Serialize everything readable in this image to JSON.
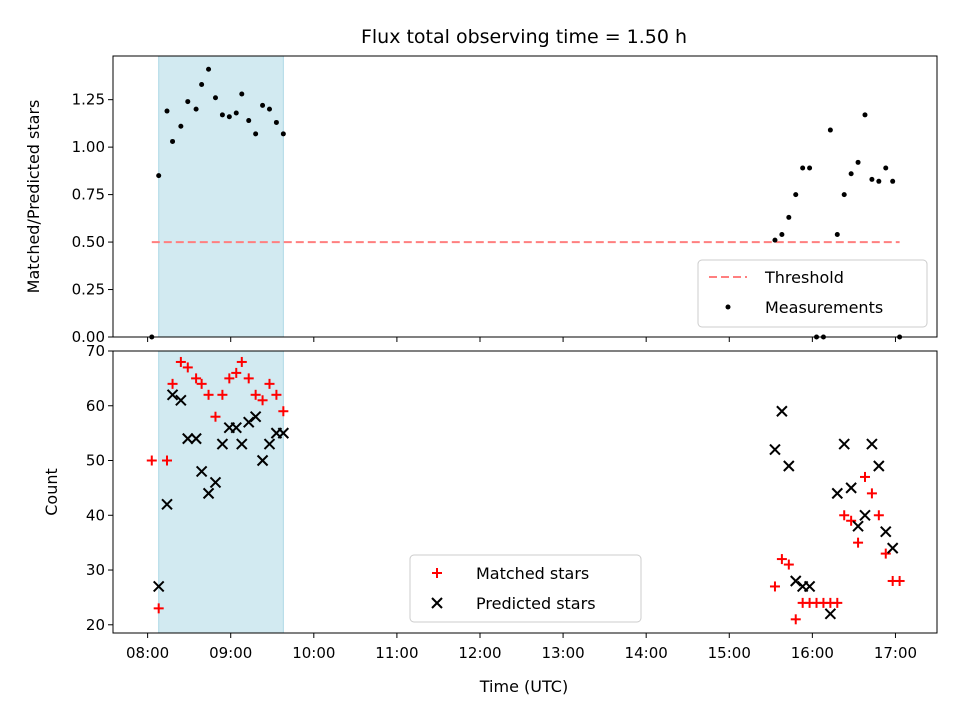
{
  "chart_data": [
    {
      "type": "scatter",
      "title": "Flux total observing time = 1.50 h",
      "xlabel": "",
      "ylabel": "Matched/Predicted stars",
      "xlim": [
        "07:35",
        "17:30"
      ],
      "ylim": [
        0,
        1.48
      ],
      "yticks": [
        "0.00",
        "0.25",
        "0.50",
        "0.75",
        "1.00",
        "1.25"
      ],
      "grid": false,
      "shaded_span": [
        "08:08",
        "09:38"
      ],
      "threshold": {
        "name": "Threshold",
        "value": 0.5,
        "x_range": [
          "08:03",
          "17:03"
        ],
        "color": "#ff7f7f"
      },
      "series": [
        {
          "name": "Measurements",
          "color": "#000000",
          "marker": "dot",
          "points": [
            [
              "08:03",
              0.0
            ],
            [
              "08:08",
              0.85
            ],
            [
              "08:14",
              1.19
            ],
            [
              "08:18",
              1.03
            ],
            [
              "08:24",
              1.11
            ],
            [
              "08:29",
              1.24
            ],
            [
              "08:35",
              1.2
            ],
            [
              "08:39",
              1.33
            ],
            [
              "08:44",
              1.41
            ],
            [
              "08:49",
              1.26
            ],
            [
              "08:54",
              1.17
            ],
            [
              "08:59",
              1.16
            ],
            [
              "09:04",
              1.18
            ],
            [
              "09:08",
              1.28
            ],
            [
              "09:13",
              1.14
            ],
            [
              "09:18",
              1.07
            ],
            [
              "09:23",
              1.22
            ],
            [
              "09:28",
              1.2
            ],
            [
              "09:33",
              1.13
            ],
            [
              "09:38",
              1.07
            ],
            [
              "15:33",
              0.51
            ],
            [
              "15:38",
              0.54
            ],
            [
              "15:43",
              0.63
            ],
            [
              "15:48",
              0.75
            ],
            [
              "15:53",
              0.89
            ],
            [
              "15:58",
              0.89
            ],
            [
              "16:03",
              0.0
            ],
            [
              "16:08",
              0.0
            ],
            [
              "16:13",
              1.09
            ],
            [
              "16:18",
              0.54
            ],
            [
              "16:23",
              0.75
            ],
            [
              "16:28",
              0.86
            ],
            [
              "16:33",
              0.92
            ],
            [
              "16:38",
              1.17
            ],
            [
              "16:43",
              0.83
            ],
            [
              "16:48",
              0.82
            ],
            [
              "16:53",
              0.89
            ],
            [
              "16:58",
              0.82
            ],
            [
              "17:03",
              0.0
            ]
          ]
        }
      ]
    },
    {
      "type": "scatter",
      "title": "",
      "xlabel": "Time (UTC)",
      "ylabel": "Count",
      "xlim": [
        "07:35",
        "17:30"
      ],
      "ylim": [
        18.5,
        70
      ],
      "xticks": [
        "08:00",
        "09:00",
        "10:00",
        "11:00",
        "12:00",
        "13:00",
        "14:00",
        "15:00",
        "16:00",
        "17:00"
      ],
      "yticks": [
        "20",
        "30",
        "40",
        "50",
        "60",
        "70"
      ],
      "grid": false,
      "shaded_span": [
        "08:08",
        "09:38"
      ],
      "series": [
        {
          "name": "Matched stars",
          "color": "#ff0000",
          "marker": "plus",
          "points": [
            [
              "08:03",
              50
            ],
            [
              "08:08",
              23
            ],
            [
              "08:14",
              50
            ],
            [
              "08:18",
              64
            ],
            [
              "08:24",
              68
            ],
            [
              "08:29",
              67
            ],
            [
              "08:35",
              65
            ],
            [
              "08:39",
              64
            ],
            [
              "08:44",
              62
            ],
            [
              "08:49",
              58
            ],
            [
              "08:54",
              62
            ],
            [
              "08:59",
              65
            ],
            [
              "09:04",
              66
            ],
            [
              "09:08",
              68
            ],
            [
              "09:13",
              65
            ],
            [
              "09:18",
              62
            ],
            [
              "09:23",
              61
            ],
            [
              "09:28",
              64
            ],
            [
              "09:33",
              62
            ],
            [
              "09:38",
              59
            ],
            [
              "15:33",
              27
            ],
            [
              "15:38",
              32
            ],
            [
              "15:43",
              31
            ],
            [
              "15:48",
              21
            ],
            [
              "15:53",
              24
            ],
            [
              "15:58",
              24
            ],
            [
              "16:03",
              24
            ],
            [
              "16:08",
              24
            ],
            [
              "16:13",
              24
            ],
            [
              "16:18",
              24
            ],
            [
              "16:23",
              40
            ],
            [
              "16:28",
              39
            ],
            [
              "16:33",
              35
            ],
            [
              "16:38",
              47
            ],
            [
              "16:43",
              44
            ],
            [
              "16:48",
              40
            ],
            [
              "16:53",
              33
            ],
            [
              "16:58",
              28
            ],
            [
              "17:03",
              28
            ]
          ]
        },
        {
          "name": "Predicted stars",
          "color": "#000000",
          "marker": "x",
          "points": [
            [
              "08:08",
              27
            ],
            [
              "08:14",
              42
            ],
            [
              "08:18",
              62
            ],
            [
              "08:24",
              61
            ],
            [
              "08:29",
              54
            ],
            [
              "08:35",
              54
            ],
            [
              "08:39",
              48
            ],
            [
              "08:44",
              44
            ],
            [
              "08:49",
              46
            ],
            [
              "08:54",
              53
            ],
            [
              "08:59",
              56
            ],
            [
              "09:04",
              56
            ],
            [
              "09:08",
              53
            ],
            [
              "09:13",
              57
            ],
            [
              "09:18",
              58
            ],
            [
              "09:23",
              50
            ],
            [
              "09:28",
              53
            ],
            [
              "09:33",
              55
            ],
            [
              "09:38",
              55
            ],
            [
              "15:33",
              52
            ],
            [
              "15:38",
              59
            ],
            [
              "15:43",
              49
            ],
            [
              "15:48",
              28
            ],
            [
              "15:53",
              27
            ],
            [
              "15:58",
              27
            ],
            [
              "16:13",
              22
            ],
            [
              "16:18",
              44
            ],
            [
              "16:23",
              53
            ],
            [
              "16:28",
              45
            ],
            [
              "16:33",
              38
            ],
            [
              "16:38",
              40
            ],
            [
              "16:43",
              53
            ],
            [
              "16:48",
              49
            ],
            [
              "16:53",
              37
            ],
            [
              "16:58",
              34
            ]
          ]
        }
      ]
    }
  ],
  "legends": {
    "top": {
      "placement": "lower-right",
      "threshold_label": "Threshold",
      "measurements_label": "Measurements"
    },
    "bottom": {
      "placement": "lower-center",
      "matched_label": "Matched stars",
      "predicted_label": "Predicted stars"
    }
  },
  "colors": {
    "shade": "#add8e6",
    "threshold": "#ff7f7f",
    "matched": "#ff0000",
    "predicted": "#000000"
  }
}
